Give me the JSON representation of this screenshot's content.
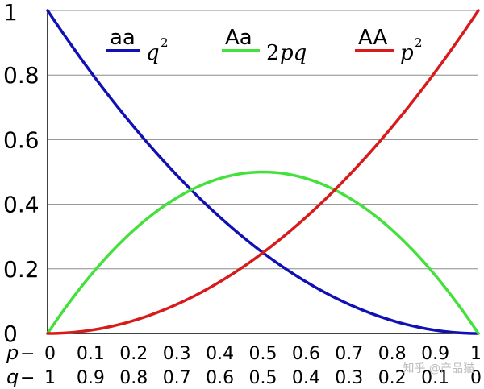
{
  "chart_data": {
    "type": "line",
    "title": "",
    "xlabel": "",
    "ylabel": "",
    "xlim": [
      0,
      1
    ],
    "ylim": [
      0,
      1
    ],
    "grid": true,
    "legend_position": "top",
    "x_rows": [
      {
        "label": "p",
        "ticks": [
          "0",
          "0.1",
          "0.2",
          "0.3",
          "0.4",
          "0.5",
          "0.6",
          "0.7",
          "0.8",
          "0.9",
          "1"
        ]
      },
      {
        "label": "q",
        "ticks": [
          "1",
          "0.9",
          "0.8",
          "0.7",
          "0.6",
          "0.5",
          "0.4",
          "0.3",
          "0.2",
          "0.1",
          "0"
        ]
      }
    ],
    "yticks": [
      "0",
      "0.2",
      "0.4",
      "0.6",
      "0.8",
      "1"
    ],
    "x": [
      0,
      0.1,
      0.2,
      0.3,
      0.4,
      0.5,
      0.6,
      0.7,
      0.8,
      0.9,
      1
    ],
    "series": [
      {
        "genotype": "aa",
        "formula": "q",
        "sup": "2",
        "color": "#1010b4",
        "values": [
          1,
          0.81,
          0.64,
          0.49,
          0.36,
          0.25,
          0.16,
          0.09,
          0.04,
          0.01,
          0
        ]
      },
      {
        "genotype": "Aa",
        "formula": "2pq",
        "sup": "",
        "color": "#44e03c",
        "values": [
          0,
          0.18,
          0.32,
          0.42,
          0.48,
          0.5,
          0.48,
          0.42,
          0.32,
          0.18,
          0
        ]
      },
      {
        "genotype": "AA",
        "formula": "p",
        "sup": "2",
        "color": "#d81a1a",
        "values": [
          0,
          0.01,
          0.04,
          0.09,
          0.16,
          0.25,
          0.36,
          0.49,
          0.64,
          0.81,
          1
        ]
      }
    ]
  },
  "watermark": "知乎 @产品猫"
}
